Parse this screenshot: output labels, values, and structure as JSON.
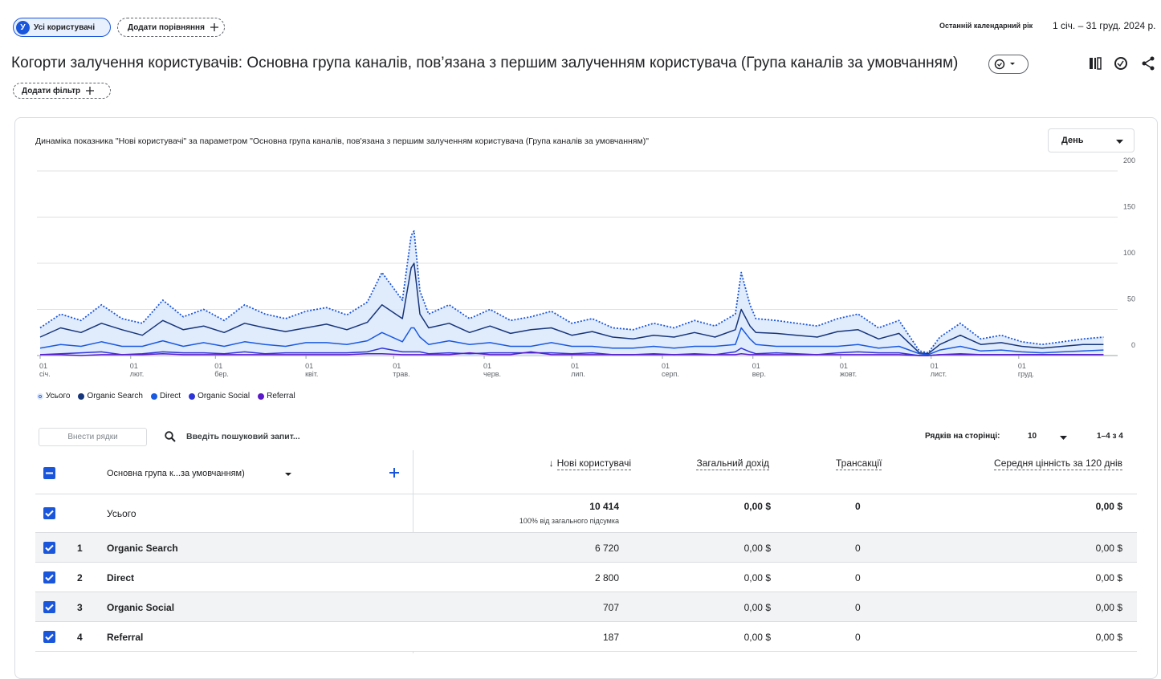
{
  "header": {
    "segment_initial": "У",
    "segment": "Усі користувачі",
    "add_comparison": "Додати порівняння",
    "date_label": "Останній календарний рік",
    "date_range": "1 січ. – 31 груд. 2024 р."
  },
  "report": {
    "title": "Когорти залучення користувачів: Основна група каналів, пов’язана з першим залученням користувача (Група каналів за умовчанням)",
    "add_filter": "Додати фільтр"
  },
  "chart_data": {
    "type": "line",
    "title": "Динаміка показника \"Нові користувачі\" за параметром \"Основна група каналів, пов'язана з першим залученням користувача (Група каналів за умовчанням)\"",
    "granularity": "День",
    "x": [
      1,
      8,
      15,
      22,
      29,
      36,
      43,
      50,
      57,
      64,
      71,
      78,
      85,
      92,
      99,
      106,
      113,
      118,
      125,
      128,
      129,
      131,
      134,
      141,
      148,
      155,
      162,
      169,
      176,
      183,
      190,
      197,
      204,
      211,
      218,
      225,
      232,
      239,
      241,
      244,
      246,
      253,
      260,
      267,
      274,
      281,
      288,
      295,
      302,
      305,
      309,
      316,
      323,
      330,
      337,
      344,
      351,
      358,
      365
    ],
    "xlim": [
      1,
      366
    ],
    "xticks": [
      {
        "value": 1,
        "label": "01 січ."
      },
      {
        "value": 32,
        "label": "01 лют."
      },
      {
        "value": 61,
        "label": "01 бер."
      },
      {
        "value": 92,
        "label": "01 квіт."
      },
      {
        "value": 122,
        "label": "01 трав."
      },
      {
        "value": 153,
        "label": "01 черв."
      },
      {
        "value": 183,
        "label": "01 лип."
      },
      {
        "value": 214,
        "label": "01 серп."
      },
      {
        "value": 245,
        "label": "01 вер."
      },
      {
        "value": 275,
        "label": "01 жовт."
      },
      {
        "value": 306,
        "label": "01 лист."
      },
      {
        "value": 336,
        "label": "01 груд."
      }
    ],
    "ylim": [
      0,
      200
    ],
    "yticks": [
      0,
      50,
      100,
      150,
      200
    ],
    "grid": true,
    "series": [
      {
        "name": "Усього",
        "color": "#1a56db",
        "fill": "#dbe7fb",
        "dashed": true,
        "values": [
          30,
          45,
          38,
          55,
          40,
          35,
          60,
          42,
          50,
          38,
          55,
          45,
          40,
          48,
          52,
          44,
          58,
          90,
          60,
          130,
          135,
          70,
          45,
          55,
          40,
          50,
          38,
          42,
          48,
          35,
          40,
          30,
          28,
          35,
          30,
          38,
          32,
          45,
          90,
          55,
          40,
          38,
          35,
          32,
          40,
          45,
          30,
          38,
          5,
          3,
          20,
          35,
          18,
          22,
          15,
          12,
          15,
          18,
          20
        ]
      },
      {
        "name": "Organic Search",
        "color": "#16357a",
        "values": [
          20,
          30,
          25,
          35,
          28,
          22,
          38,
          28,
          32,
          25,
          35,
          30,
          26,
          30,
          34,
          28,
          36,
          55,
          40,
          95,
          100,
          45,
          30,
          35,
          25,
          32,
          24,
          28,
          30,
          22,
          26,
          20,
          18,
          22,
          20,
          25,
          20,
          28,
          50,
          32,
          25,
          24,
          22,
          20,
          26,
          28,
          18,
          24,
          3,
          2,
          12,
          22,
          12,
          14,
          10,
          8,
          10,
          12,
          12
        ]
      },
      {
        "name": "Direct",
        "color": "#1a5ae0",
        "values": [
          8,
          12,
          10,
          15,
          10,
          10,
          16,
          10,
          14,
          10,
          15,
          12,
          10,
          14,
          14,
          12,
          16,
          25,
          15,
          30,
          30,
          20,
          12,
          16,
          12,
          14,
          10,
          10,
          14,
          10,
          10,
          8,
          8,
          10,
          8,
          10,
          10,
          12,
          30,
          18,
          12,
          10,
          10,
          10,
          10,
          12,
          8,
          10,
          2,
          1,
          6,
          10,
          5,
          6,
          4,
          3,
          4,
          5,
          6
        ]
      },
      {
        "name": "Organic Social",
        "color": "#2f34d8",
        "values": [
          1,
          2,
          3,
          4,
          1,
          2,
          4,
          3,
          3,
          2,
          4,
          2,
          3,
          3,
          3,
          3,
          4,
          8,
          4,
          4,
          4,
          4,
          2,
          3,
          2,
          3,
          3,
          3,
          3,
          2,
          3,
          1,
          1,
          2,
          1,
          2,
          1,
          4,
          8,
          4,
          2,
          3,
          2,
          1,
          3,
          4,
          3,
          3,
          0,
          0,
          1,
          2,
          1,
          1,
          1,
          1,
          1,
          1,
          1
        ]
      },
      {
        "name": "Referral",
        "color": "#5b19c9",
        "values": [
          1,
          1,
          0,
          1,
          1,
          1,
          2,
          1,
          1,
          1,
          1,
          1,
          1,
          1,
          1,
          1,
          2,
          2,
          1,
          1,
          1,
          1,
          1,
          1,
          3,
          1,
          1,
          4,
          1,
          1,
          1,
          1,
          1,
          1,
          1,
          1,
          1,
          1,
          2,
          1,
          1,
          1,
          1,
          1,
          1,
          1,
          1,
          1,
          0,
          0,
          1,
          1,
          1,
          1,
          1,
          1,
          1,
          1,
          1
        ]
      }
    ]
  },
  "table": {
    "toolbar": {
      "add_rows": "Внести рядки",
      "search_placeholder": "Введіть пошуковий запит...",
      "rows_per_page_label": "Рядків на сторінці:",
      "rows_per_page": "10",
      "pagination": "1–4 з 4"
    },
    "columns": [
      "Основна група к...за умовчанням)",
      "Нові користувачі",
      "Загальний дохід",
      "Трансакції",
      "Середня цінність за 120 днів"
    ],
    "totals": {
      "label": "Усього",
      "new_users": "10 414",
      "share": "100% від загального підсумка",
      "revenue": "0,00 $",
      "transactions": "0",
      "value": "0,00 $"
    },
    "rows": [
      [
        "1",
        "Organic Search",
        "6 720",
        "0,00 $",
        "0",
        "0,00 $"
      ],
      [
        "2",
        "Direct",
        "2 800",
        "0,00 $",
        "0",
        "0,00 $"
      ],
      [
        "3",
        "Organic Social",
        "707",
        "0,00 $",
        "0",
        "0,00 $"
      ],
      [
        "4",
        "Referral",
        "187",
        "0,00 $",
        "0",
        "0,00 $"
      ]
    ]
  }
}
